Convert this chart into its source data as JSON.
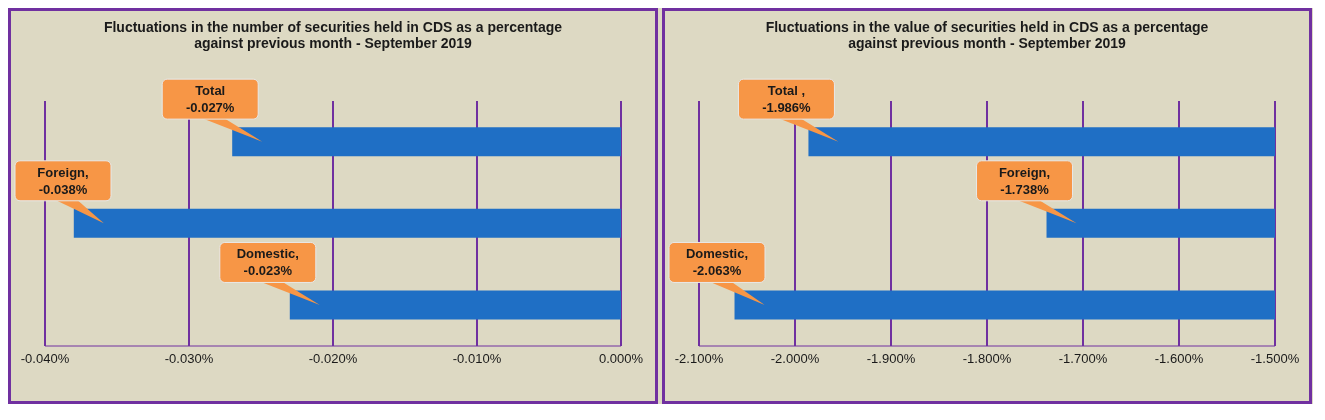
{
  "chart_data": [
    {
      "type": "bar",
      "orientation": "horizontal",
      "title": "Fluctuations in the number of securities held in CDS as a percentage against previous month - September 2019",
      "categories": [
        null,
        null,
        null
      ],
      "values": [
        -0.027,
        -0.038,
        -0.023
      ],
      "value_labels": [
        "Total -0.027%",
        "Foreign, -0.038%",
        "Domestic, -0.023%"
      ],
      "color": "#1f6fc5",
      "xlim": [
        -0.04,
        0
      ],
      "xticks": [
        {
          "value": -0.04,
          "label": "-0.040%"
        },
        {
          "value": -0.03,
          "label": "-0.030%"
        },
        {
          "value": -0.02,
          "label": "-0.020%"
        },
        {
          "value": -0.01,
          "label": "-0.010%"
        },
        {
          "value": 0,
          "label": "0.000%"
        }
      ],
      "grid": "x",
      "tick_labels": "x"
    },
    {
      "type": "bar",
      "orientation": "horizontal",
      "title": "Fluctuations in the value of securities held in CDS as a percentage against previous month - September 2019",
      "categories": [
        null,
        null,
        null
      ],
      "values": [
        -1.986,
        -1.738,
        -2.063
      ],
      "value_labels": [
        "Total , -1.986%",
        "Foreign, -1.738%",
        "Domestic, -2.063%"
      ],
      "color": "#1f6fc5",
      "xlim": [
        -2.1,
        -1.5
      ],
      "xticks": [
        {
          "value": -2.1,
          "label": "-2.100%"
        },
        {
          "value": -2.0,
          "label": "-2.000%"
        },
        {
          "value": -1.9,
          "label": "-1.900%"
        },
        {
          "value": -1.8,
          "label": "-1.800%"
        },
        {
          "value": -1.7,
          "label": "-1.700%"
        },
        {
          "value": -1.6,
          "label": "-1.600%"
        },
        {
          "value": -1.5,
          "label": "-1.500%"
        }
      ],
      "grid": "x",
      "tick_labels": "x"
    }
  ]
}
